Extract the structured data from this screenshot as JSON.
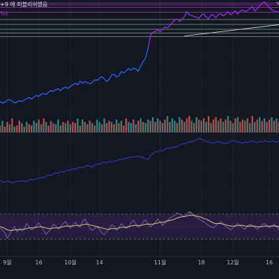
{
  "header": {
    "title_fragment": "+9 에 퍼블리쉬했음",
    "title_fragment_2": "%)"
  },
  "colors": {
    "background": "#131722",
    "price_below": "#2962ff",
    "price_above": "#9c27f0",
    "volume_up": "#26a69a",
    "volume_down": "#ef5350",
    "obv": "#2940d6",
    "rsi": "#7e57c2",
    "rsi_ma": "#e6c768",
    "rsi_band_fill": "#2a1f44",
    "level_magenta": "#e040fb",
    "level_green": "#a5d6a7",
    "level_white": "#d1d4dc",
    "overbought_fill": "#3d5a3f"
  },
  "chart_data": [
    {
      "type": "line",
      "pane": "price",
      "series": [
        {
          "y": [
            17.0,
            15.5,
            16.2,
            17.8,
            18.5,
            17.0,
            15.8,
            16.5,
            17.5,
            16.8,
            18.0,
            19.2,
            20.0,
            19.0,
            20.5,
            21.8,
            21.0,
            22.8,
            23.5,
            22.6,
            24.5,
            25.8,
            25.0,
            26.5,
            27.2,
            26.0,
            27.8,
            28.5,
            27.6,
            29.0,
            30.5,
            31.8,
            30.6,
            33.5,
            32.0,
            33.0,
            32.4,
            31.2,
            32.5,
            34.6,
            34.2,
            35.8,
            37.2,
            35.4,
            33.2,
            35.0,
            38.6,
            39.2,
            37.0,
            37.8,
            41.5,
            40.2,
            42.0,
            43.8,
            42.5,
            44.2,
            43.5,
            41.5,
            46.0,
            49.5,
            52.5,
            60.0,
            71.0,
            73.5,
            74.2,
            75.5,
            74.0,
            75.8,
            78.0,
            77.2,
            79.0,
            81.5,
            83.5,
            84.5,
            82.5,
            84.0,
            86.5,
            90.5,
            88.0,
            87.2,
            86.5,
            86.0,
            85.0,
            87.5,
            88.5,
            86.0,
            84.5,
            88.0,
            87.5,
            85.5,
            88.2,
            88.8,
            87.0,
            88.5,
            90.5,
            87.8,
            89.5,
            91.0,
            88.5,
            90.8,
            92.0,
            90.5,
            91.5,
            93.0,
            94.5,
            91.0,
            92.8,
            95.0,
            97.5,
            98.5,
            96.0,
            94.0,
            92.0,
            91.0,
            90.5,
            90.0
          ]
        }
      ],
      "ylim": [
        0,
        100
      ],
      "horizontal_levels": [
        {
          "value": 97.5,
          "color": "magenta"
        },
        {
          "value": 96.0,
          "color": "magenta"
        },
        {
          "value": 94.0,
          "color": "magenta"
        },
        {
          "value": 90.0,
          "color": "magenta"
        },
        {
          "value": 84.0,
          "color": "green"
        },
        {
          "value": 80.0,
          "color": "green"
        },
        {
          "value": 76.0,
          "color": "green"
        },
        {
          "value": 73.0,
          "color": "white"
        },
        {
          "value": 70.0,
          "color": "green"
        }
      ],
      "trendlines": [
        {
          "x": [
            76,
            116
          ],
          "y": [
            70.5,
            80.0
          ]
        },
        {
          "x": [
            114,
            116
          ],
          "y": [
            98.5,
            94.0
          ]
        }
      ]
    },
    {
      "type": "bar",
      "pane": "volume",
      "values": [
        6,
        10,
        5,
        9,
        7,
        12,
        5,
        6,
        10,
        8,
        5,
        9,
        7,
        6,
        10,
        8,
        11,
        7,
        12,
        9,
        6,
        10,
        8,
        7,
        11,
        6,
        9,
        8,
        10,
        7,
        9,
        8,
        12,
        6,
        11,
        9,
        7,
        10,
        8,
        6,
        11,
        9,
        7,
        12,
        8,
        10,
        9,
        7,
        11,
        8,
        10,
        6,
        12,
        9,
        8,
        11,
        7,
        10,
        12,
        9,
        8,
        11,
        10,
        13,
        9,
        12,
        10,
        8,
        11,
        14,
        9,
        12,
        10,
        8,
        13,
        11,
        9,
        12,
        14,
        10,
        8,
        13,
        11,
        10,
        12,
        9,
        14,
        8,
        11,
        13,
        10,
        12,
        9,
        11,
        14,
        10,
        8,
        12,
        13,
        9,
        11,
        10,
        12,
        8,
        14,
        9,
        11,
        13,
        10,
        12,
        9,
        11,
        13,
        10,
        12,
        9
      ],
      "direction": [
        "d",
        "u",
        "d",
        "d",
        "u",
        "d",
        "u",
        "d",
        "d",
        "u",
        "d",
        "u",
        "d",
        "d",
        "u",
        "u",
        "d",
        "u",
        "d",
        "u",
        "d",
        "d",
        "u",
        "d",
        "u",
        "u",
        "d",
        "u",
        "d",
        "u",
        "d",
        "d",
        "u",
        "d",
        "u",
        "d",
        "u",
        "d",
        "u",
        "d",
        "u",
        "u",
        "d",
        "u",
        "d",
        "d",
        "u",
        "d",
        "u",
        "d",
        "u",
        "d",
        "d",
        "u",
        "u",
        "d",
        "u",
        "d",
        "u",
        "d",
        "u",
        "u",
        "d",
        "u",
        "d",
        "u",
        "d",
        "u",
        "d",
        "u",
        "d",
        "u",
        "u",
        "d",
        "u",
        "d",
        "u",
        "d",
        "d",
        "u",
        "d",
        "u",
        "d",
        "u",
        "d",
        "u",
        "d",
        "u",
        "d",
        "d",
        "u",
        "d",
        "u",
        "d",
        "u",
        "d",
        "u",
        "d",
        "u",
        "d",
        "d",
        "u",
        "d",
        "u",
        "d",
        "u",
        "d",
        "u",
        "d",
        "u",
        "d",
        "d",
        "u",
        "d",
        "u",
        "d"
      ],
      "ylim": [
        0,
        16
      ]
    },
    {
      "type": "line",
      "pane": "obv",
      "series": [
        {
          "y": [
            14,
            12,
            11,
            13,
            12,
            10,
            11,
            13,
            12,
            14,
            13,
            12,
            15,
            16,
            15,
            17,
            18,
            20,
            19,
            22,
            24,
            23,
            26,
            28,
            27,
            30,
            29,
            31,
            33,
            32,
            35,
            34,
            36,
            38,
            37,
            39,
            41,
            40,
            38,
            42,
            44,
            43,
            45,
            47,
            46,
            48,
            47,
            50,
            49,
            52,
            51,
            54,
            53,
            56,
            55,
            57,
            56,
            58,
            57,
            55,
            53,
            51,
            58,
            62,
            66,
            65,
            68,
            67,
            70,
            72,
            71,
            74,
            73,
            75,
            77,
            80,
            79,
            82,
            84,
            83,
            85,
            87,
            90,
            88,
            86,
            84,
            83,
            82,
            81,
            83,
            84,
            82,
            81,
            80,
            82,
            84,
            86,
            84,
            83,
            82,
            81,
            83,
            82,
            84,
            85,
            83,
            82,
            84,
            83,
            85,
            84,
            83,
            85,
            84,
            83,
            84
          ]
        }
      ],
      "ylim": [
        0,
        100
      ]
    },
    {
      "type": "line",
      "pane": "rsi",
      "series": [
        {
          "y": [
            48,
            45,
            40,
            32,
            38,
            45,
            50,
            42,
            46,
            43,
            47,
            55,
            50,
            45,
            48,
            52,
            56,
            50,
            44,
            38,
            42,
            47,
            54,
            51,
            46,
            49,
            55,
            58,
            52,
            48,
            53,
            57,
            52,
            49,
            58,
            62,
            55,
            48,
            44,
            47,
            50,
            46,
            40,
            38,
            42,
            46,
            53,
            50,
            44,
            48,
            55,
            51,
            47,
            50,
            56,
            60,
            54,
            49,
            52,
            57,
            61,
            55,
            50,
            53,
            57,
            62,
            58,
            52,
            56,
            60,
            64,
            66,
            68,
            72,
            70,
            68,
            66,
            70,
            74,
            72,
            68,
            65,
            62,
            60,
            58,
            55,
            52,
            50,
            48,
            52,
            55,
            58,
            55,
            50,
            48,
            45,
            48,
            52,
            55,
            52,
            48,
            46,
            50,
            54,
            52,
            49,
            46,
            49,
            53,
            55,
            52,
            48,
            51,
            54,
            50,
            46
          ]
        },
        {
          "y": [
            50,
            49,
            47,
            45,
            44,
            44,
            45,
            45,
            46,
            46,
            46,
            47,
            48,
            48,
            48,
            49,
            50,
            50,
            49,
            48,
            47,
            47,
            48,
            48,
            48,
            49,
            50,
            51,
            51,
            51,
            51,
            52,
            52,
            52,
            53,
            54,
            54,
            53,
            52,
            51,
            50,
            49,
            48,
            47,
            46,
            46,
            47,
            47,
            47,
            48,
            49,
            49,
            49,
            50,
            51,
            52,
            52,
            52,
            52,
            53,
            54,
            54,
            54,
            54,
            55,
            56,
            57,
            57,
            58,
            59,
            60,
            61,
            62,
            64,
            65,
            66,
            66,
            67,
            68,
            68,
            68,
            67,
            66,
            65,
            63,
            62,
            60,
            58,
            56,
            55,
            55,
            55,
            54,
            53,
            52,
            51,
            51,
            51,
            52,
            52,
            52,
            51,
            51,
            51,
            51,
            51,
            50,
            50,
            50,
            51,
            51,
            51,
            51,
            51,
            51,
            50
          ]
        }
      ],
      "ylim": [
        0,
        100
      ],
      "band": [
        30,
        70
      ]
    }
  ],
  "x_axis": {
    "labels": [
      {
        "text": "9월",
        "index": 3
      },
      {
        "text": "16",
        "index": 16
      },
      {
        "text": "10월",
        "index": 29
      },
      {
        "text": "14",
        "index": 41
      },
      {
        "text": "11월",
        "index": 66
      },
      {
        "text": "18",
        "index": 83
      },
      {
        "text": "12월",
        "index": 96
      },
      {
        "text": "16",
        "index": 111
      }
    ]
  }
}
